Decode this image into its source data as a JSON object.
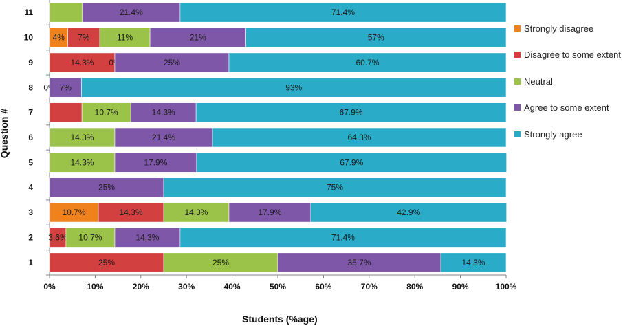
{
  "chart_data": {
    "type": "bar",
    "orientation": "horizontal",
    "stacked": true,
    "percent": true,
    "title": "",
    "xlabel": "Students (%age)",
    "ylabel": "Question #",
    "xlim": [
      0,
      100
    ],
    "x_ticks": [
      "0%",
      "10%",
      "20%",
      "30%",
      "40%",
      "50%",
      "60%",
      "70%",
      "80%",
      "90%",
      "100%"
    ],
    "categories": [
      "11",
      "10",
      "9",
      "8",
      "7",
      "6",
      "5",
      "4",
      "3",
      "2",
      "1"
    ],
    "series": [
      {
        "name": "Strongly disagree",
        "color": "#F0821E",
        "values": [
          0,
          4,
          0,
          0,
          0,
          0,
          0,
          0,
          10.7,
          0,
          0
        ],
        "labels": [
          "",
          "4%",
          "",
          "0%",
          "",
          "",
          "",
          "",
          "10.7%",
          "",
          ""
        ]
      },
      {
        "name": "Disagree to some extent",
        "color": "#D24040",
        "values": [
          0,
          7,
          14.3,
          0,
          7.1,
          0,
          0,
          0,
          14.3,
          3.6,
          25
        ],
        "labels": [
          "",
          "7%",
          "14.3%",
          "",
          "",
          "",
          "",
          "",
          "14.3%",
          "3.6%",
          "25%"
        ]
      },
      {
        "name": "Neutral",
        "color": "#9BC34A",
        "values": [
          7.2,
          11,
          0,
          0,
          10.7,
          14.3,
          14.3,
          0,
          14.3,
          10.7,
          25
        ],
        "labels": [
          "",
          "11%",
          "0%",
          "",
          "10.7%",
          "14.3%",
          "14.3%",
          "",
          "14.3%",
          "10.7%",
          "25%"
        ]
      },
      {
        "name": "Agree to some extent",
        "color": "#7E57A8",
        "values": [
          21.4,
          21,
          25,
          7,
          14.3,
          21.4,
          17.9,
          25,
          17.9,
          14.3,
          35.7
        ],
        "labels": [
          "21.4%",
          "21%",
          "25%",
          "7%",
          "14.3%",
          "21.4%",
          "17.9%",
          "25%",
          "17.9%",
          "14.3%",
          "35.7%"
        ]
      },
      {
        "name": "Strongly agree",
        "color": "#2AACC8",
        "values": [
          71.4,
          57,
          60.7,
          93,
          67.9,
          64.3,
          67.9,
          75,
          42.9,
          71.4,
          14.3
        ],
        "labels": [
          "71.4%",
          "57%",
          "60.7%",
          "93%",
          "67.9%",
          "64.3%",
          "67.9%",
          "75%",
          "42.9%",
          "71.4%",
          "14.3%"
        ]
      }
    ],
    "legend": {
      "position": "right",
      "items": [
        "Strongly disagree",
        "Disagree to some extent",
        "Neutral",
        "Agree to some extent",
        "Strongly agree"
      ]
    }
  }
}
